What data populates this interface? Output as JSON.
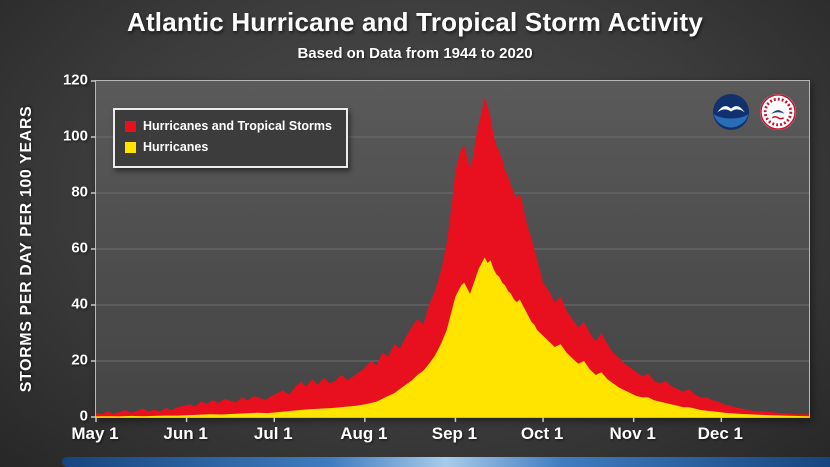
{
  "title": "Atlantic Hurricane and Tropical Storm Activity",
  "subtitle": "Based on Data from 1944 to 2020",
  "y_axis_title": "STORMS PER DAY PER 100 YEARS",
  "logos": [
    {
      "name": "noaa-logo"
    },
    {
      "name": "nws-logo"
    }
  ],
  "colors": {
    "combined_red": "#e8101e",
    "hurricane_yellow": "#ffe400",
    "gridline": "#6e6e6e",
    "axis": "#c8c8c8"
  },
  "chart_data": {
    "type": "area",
    "title": "Atlantic Hurricane and Tropical Storm Activity",
    "subtitle": "Based on Data from 1944 to 2020",
    "xlabel": "",
    "ylabel": "STORMS PER DAY PER 100 YEARS",
    "ylim": [
      0,
      120
    ],
    "y_ticks": [
      0,
      20,
      40,
      60,
      80,
      100,
      120
    ],
    "x_range_days": [
      0,
      244
    ],
    "x_ticks": [
      {
        "day": 0,
        "label": "May 1"
      },
      {
        "day": 31,
        "label": "Jun 1"
      },
      {
        "day": 61,
        "label": "Jul 1"
      },
      {
        "day": 92,
        "label": "Aug 1"
      },
      {
        "day": 123,
        "label": "Sep 1"
      },
      {
        "day": 153,
        "label": "Oct 1"
      },
      {
        "day": 184,
        "label": "Nov 1"
      },
      {
        "day": 214,
        "label": "Dec 1"
      }
    ],
    "grid": "horizontal",
    "legend_position": "top-left",
    "series": [
      {
        "name": "Hurricanes and Tropical Storms",
        "color": "#e8101e",
        "points": [
          [
            0,
            1.5
          ],
          [
            2,
            1
          ],
          [
            4,
            2
          ],
          [
            6,
            1.2
          ],
          [
            8,
            1.8
          ],
          [
            10,
            2.5
          ],
          [
            12,
            1.5
          ],
          [
            14,
            2.2
          ],
          [
            16,
            3
          ],
          [
            18,
            2
          ],
          [
            20,
            2.6
          ],
          [
            22,
            2
          ],
          [
            24,
            3.2
          ],
          [
            26,
            2.4
          ],
          [
            28,
            3.6
          ],
          [
            30,
            4
          ],
          [
            32,
            4.5
          ],
          [
            34,
            3.8
          ],
          [
            36,
            5.5
          ],
          [
            38,
            4.8
          ],
          [
            40,
            6
          ],
          [
            42,
            5
          ],
          [
            44,
            6.5
          ],
          [
            46,
            5.8
          ],
          [
            48,
            5.2
          ],
          [
            50,
            7
          ],
          [
            52,
            6
          ],
          [
            54,
            7.5
          ],
          [
            56,
            6.8
          ],
          [
            58,
            6.2
          ],
          [
            60,
            7.5
          ],
          [
            62,
            8.5
          ],
          [
            64,
            9.5
          ],
          [
            66,
            8
          ],
          [
            68,
            10.5
          ],
          [
            70,
            12.5
          ],
          [
            72,
            11
          ],
          [
            74,
            13.5
          ],
          [
            76,
            11.5
          ],
          [
            78,
            14
          ],
          [
            80,
            12
          ],
          [
            82,
            13
          ],
          [
            84,
            15
          ],
          [
            86,
            13
          ],
          [
            88,
            14.5
          ],
          [
            90,
            16
          ],
          [
            92,
            17.5
          ],
          [
            94,
            20
          ],
          [
            96,
            18.5
          ],
          [
            98,
            23
          ],
          [
            100,
            21.5
          ],
          [
            102,
            26
          ],
          [
            104,
            24.5
          ],
          [
            106,
            28.5
          ],
          [
            108,
            32
          ],
          [
            110,
            35
          ],
          [
            112,
            33
          ],
          [
            114,
            40
          ],
          [
            116,
            45
          ],
          [
            118,
            52
          ],
          [
            120,
            62
          ],
          [
            122,
            78
          ],
          [
            123,
            88
          ],
          [
            124,
            92
          ],
          [
            125,
            96
          ],
          [
            126,
            97
          ],
          [
            127,
            93
          ],
          [
            128,
            89
          ],
          [
            129,
            93
          ],
          [
            130,
            100
          ],
          [
            131,
            105
          ],
          [
            132,
            109
          ],
          [
            133,
            114
          ],
          [
            134,
            111
          ],
          [
            135,
            107
          ],
          [
            136,
            101
          ],
          [
            137,
            97
          ],
          [
            138,
            95
          ],
          [
            139,
            92
          ],
          [
            140,
            88
          ],
          [
            141,
            86
          ],
          [
            142,
            83
          ],
          [
            143,
            80
          ],
          [
            144,
            78
          ],
          [
            145,
            80
          ],
          [
            146,
            76
          ],
          [
            147,
            71
          ],
          [
            148,
            67
          ],
          [
            149,
            64
          ],
          [
            150,
            60
          ],
          [
            151,
            56
          ],
          [
            152,
            52
          ],
          [
            153,
            48
          ],
          [
            155,
            45
          ],
          [
            157,
            41
          ],
          [
            159,
            43
          ],
          [
            161,
            38
          ],
          [
            163,
            35
          ],
          [
            165,
            32
          ],
          [
            167,
            34
          ],
          [
            169,
            30
          ],
          [
            171,
            27
          ],
          [
            173,
            30
          ],
          [
            175,
            26
          ],
          [
            177,
            23
          ],
          [
            179,
            21
          ],
          [
            181,
            19
          ],
          [
            183,
            17.5
          ],
          [
            185,
            16
          ],
          [
            187,
            14.5
          ],
          [
            189,
            15.5
          ],
          [
            191,
            13
          ],
          [
            193,
            12
          ],
          [
            195,
            13
          ],
          [
            197,
            11
          ],
          [
            199,
            10
          ],
          [
            201,
            9
          ],
          [
            203,
            10
          ],
          [
            205,
            8
          ],
          [
            207,
            7
          ],
          [
            209,
            7
          ],
          [
            211,
            6
          ],
          [
            213,
            5.5
          ],
          [
            215,
            4.5
          ],
          [
            217,
            4
          ],
          [
            219,
            3.5
          ],
          [
            221,
            3
          ],
          [
            223,
            2.5
          ],
          [
            225,
            2.2
          ],
          [
            227,
            2
          ],
          [
            229,
            2
          ],
          [
            231,
            1.8
          ],
          [
            233,
            1.5
          ],
          [
            235,
            1.3
          ],
          [
            237,
            1.2
          ],
          [
            239,
            1
          ],
          [
            241,
            1
          ],
          [
            243,
            1
          ],
          [
            244,
            1
          ]
        ]
      },
      {
        "name": "Hurricanes",
        "color": "#ffe400",
        "points": [
          [
            0,
            0.2
          ],
          [
            4,
            0.3
          ],
          [
            8,
            0.2
          ],
          [
            12,
            0.4
          ],
          [
            16,
            0.3
          ],
          [
            20,
            0.4
          ],
          [
            24,
            0.5
          ],
          [
            28,
            0.5
          ],
          [
            31,
            0.6
          ],
          [
            35,
            0.8
          ],
          [
            39,
            1
          ],
          [
            43,
            0.9
          ],
          [
            47,
            1.1
          ],
          [
            51,
            1.3
          ],
          [
            55,
            1.5
          ],
          [
            59,
            1.4
          ],
          [
            61,
            1.6
          ],
          [
            65,
            2
          ],
          [
            69,
            2.4
          ],
          [
            73,
            2.8
          ],
          [
            77,
            3
          ],
          [
            81,
            3.2
          ],
          [
            85,
            3.6
          ],
          [
            89,
            4
          ],
          [
            92,
            4.5
          ],
          [
            94,
            5
          ],
          [
            96,
            5.5
          ],
          [
            98,
            6.5
          ],
          [
            100,
            7.5
          ],
          [
            102,
            8.5
          ],
          [
            104,
            10
          ],
          [
            106,
            11.5
          ],
          [
            108,
            13
          ],
          [
            110,
            15
          ],
          [
            112,
            16.5
          ],
          [
            114,
            19
          ],
          [
            116,
            22
          ],
          [
            118,
            26
          ],
          [
            120,
            31
          ],
          [
            122,
            39
          ],
          [
            123,
            43
          ],
          [
            124,
            45
          ],
          [
            125,
            47
          ],
          [
            126,
            48
          ],
          [
            127,
            46
          ],
          [
            128,
            44
          ],
          [
            129,
            47
          ],
          [
            130,
            50
          ],
          [
            131,
            53
          ],
          [
            132,
            55
          ],
          [
            133,
            57
          ],
          [
            134,
            55
          ],
          [
            135,
            56
          ],
          [
            136,
            53
          ],
          [
            137,
            51
          ],
          [
            138,
            50
          ],
          [
            139,
            48
          ],
          [
            140,
            47
          ],
          [
            141,
            45
          ],
          [
            142,
            44
          ],
          [
            143,
            42
          ],
          [
            144,
            41
          ],
          [
            145,
            42
          ],
          [
            146,
            40
          ],
          [
            147,
            38
          ],
          [
            148,
            36
          ],
          [
            149,
            34
          ],
          [
            150,
            33
          ],
          [
            151,
            31
          ],
          [
            152,
            30
          ],
          [
            153,
            29
          ],
          [
            155,
            27
          ],
          [
            157,
            25
          ],
          [
            159,
            26
          ],
          [
            161,
            23
          ],
          [
            163,
            21
          ],
          [
            165,
            19
          ],
          [
            167,
            20
          ],
          [
            169,
            17
          ],
          [
            171,
            15
          ],
          [
            173,
            16
          ],
          [
            175,
            13.5
          ],
          [
            177,
            12
          ],
          [
            179,
            10.5
          ],
          [
            181,
            9.5
          ],
          [
            183,
            8.5
          ],
          [
            185,
            7.5
          ],
          [
            187,
            7
          ],
          [
            189,
            7
          ],
          [
            191,
            6
          ],
          [
            193,
            5.5
          ],
          [
            195,
            5
          ],
          [
            197,
            4.5
          ],
          [
            199,
            4
          ],
          [
            201,
            3.5
          ],
          [
            203,
            3.5
          ],
          [
            205,
            3
          ],
          [
            207,
            2.5
          ],
          [
            209,
            2.2
          ],
          [
            211,
            2
          ],
          [
            213,
            1.8
          ],
          [
            215,
            1.5
          ],
          [
            219,
            1.2
          ],
          [
            223,
            1
          ],
          [
            227,
            0.8
          ],
          [
            231,
            0.6
          ],
          [
            235,
            0.5
          ],
          [
            239,
            0.4
          ],
          [
            243,
            0.3
          ],
          [
            244,
            0.3
          ]
        ]
      }
    ]
  }
}
